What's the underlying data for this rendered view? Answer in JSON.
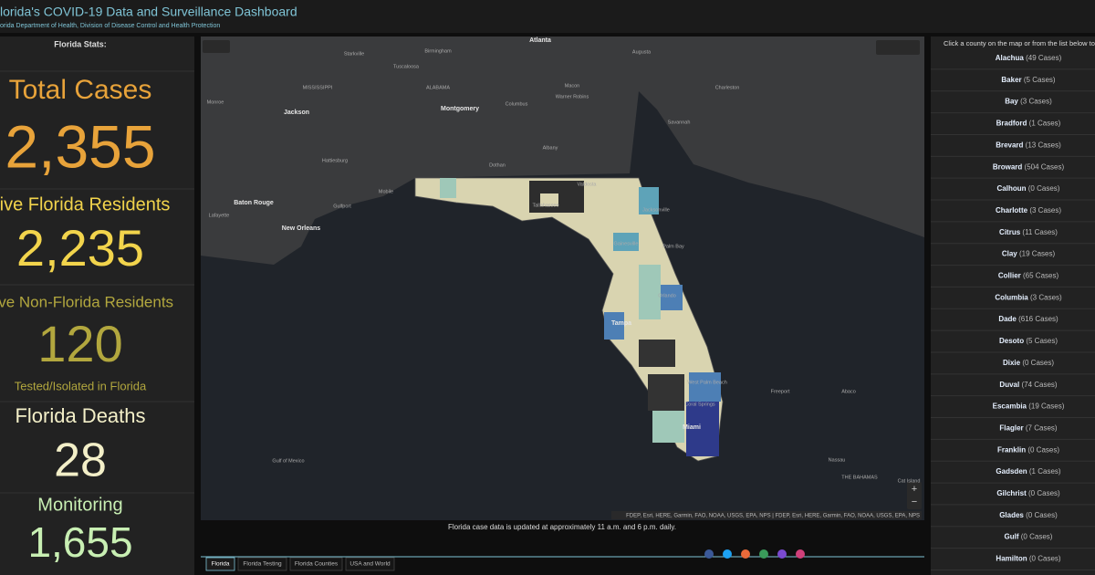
{
  "header": {
    "title": "lorida's COVID-19 Data and Surveillance Dashboard",
    "subtitle": "orida Department of Health, Division of Disease Control and Health Protection"
  },
  "stats": {
    "heading": "Florida Stats:",
    "items": [
      {
        "label": "Total Cases",
        "value": "2,355"
      },
      {
        "label": "itive Florida Residents",
        "value": "2,235"
      },
      {
        "label": "itive Non-Florida Residents",
        "value": "120",
        "note": "Tested/Isolated in Florida"
      },
      {
        "label": "Florida Deaths",
        "value": "28"
      },
      {
        "label": "Monitoring",
        "value": "1,655"
      }
    ]
  },
  "map": {
    "labels": [
      "Atlanta",
      "Birmingham",
      "Starkville",
      "Tuscaloosa",
      "MISSISSIPPI",
      "ALABAMA",
      "Jackson",
      "Montgomery",
      "Monroe",
      "Macon",
      "Warner Robins",
      "Augusta",
      "Charleston",
      "Savannah",
      "Columbus",
      "Albany",
      "Dothan",
      "Valdosta",
      "Hattiesburg",
      "Baton Rouge",
      "Lafayette",
      "New Orleans",
      "Mobile",
      "Gulfport",
      "Tallahassee",
      "Jacksonville",
      "Gainesville",
      "Orlando",
      "Tampa",
      "Palm Bay",
      "West Palm Beach",
      "Coral Springs",
      "Miami",
      "Freeport",
      "Abaco",
      "Nassau",
      "THE BAHAMAS",
      "Gulf of Mexico",
      "Cat Island"
    ],
    "attribution": "FDEP, Esri, HERE, Garmin, FAO, NOAA, USGS, EPA, NPS | FDEP, Esri, HERE, Garmin, FAO, NOAA, USGS, EPA, NPS",
    "note": "Florida case data is updated at approximately 11 a.m. and 6 p.m. daily."
  },
  "tabs": [
    "Florida",
    "Florida Testing",
    "Florida Counties",
    "USA and World"
  ],
  "counties": {
    "prompt": "Click a county on the map or from the list below to s",
    "items": [
      {
        "name": "Alachua",
        "cases": "(49 Cases)"
      },
      {
        "name": "Baker",
        "cases": "(5 Cases)"
      },
      {
        "name": "Bay",
        "cases": "(3 Cases)"
      },
      {
        "name": "Bradford",
        "cases": "(1 Cases)"
      },
      {
        "name": "Brevard",
        "cases": "(13 Cases)"
      },
      {
        "name": "Broward",
        "cases": "(504 Cases)"
      },
      {
        "name": "Calhoun",
        "cases": "(0 Cases)"
      },
      {
        "name": "Charlotte",
        "cases": "(3 Cases)"
      },
      {
        "name": "Citrus",
        "cases": "(11 Cases)"
      },
      {
        "name": "Clay",
        "cases": "(19 Cases)"
      },
      {
        "name": "Collier",
        "cases": "(65 Cases)"
      },
      {
        "name": "Columbia",
        "cases": "(3 Cases)"
      },
      {
        "name": "Dade",
        "cases": "(616 Cases)"
      },
      {
        "name": "Desoto",
        "cases": "(5 Cases)"
      },
      {
        "name": "Dixie",
        "cases": "(0 Cases)"
      },
      {
        "name": "Duval",
        "cases": "(74 Cases)"
      },
      {
        "name": "Escambia",
        "cases": "(19 Cases)"
      },
      {
        "name": "Flagler",
        "cases": "(7 Cases)"
      },
      {
        "name": "Franklin",
        "cases": "(0 Cases)"
      },
      {
        "name": "Gadsden",
        "cases": "(1 Cases)"
      },
      {
        "name": "Gilchrist",
        "cases": "(0 Cases)"
      },
      {
        "name": "Glades",
        "cases": "(0 Cases)"
      },
      {
        "name": "Gulf",
        "cases": "(0 Cases)"
      },
      {
        "name": "Hamilton",
        "cases": "(0 Cases)"
      }
    ]
  }
}
